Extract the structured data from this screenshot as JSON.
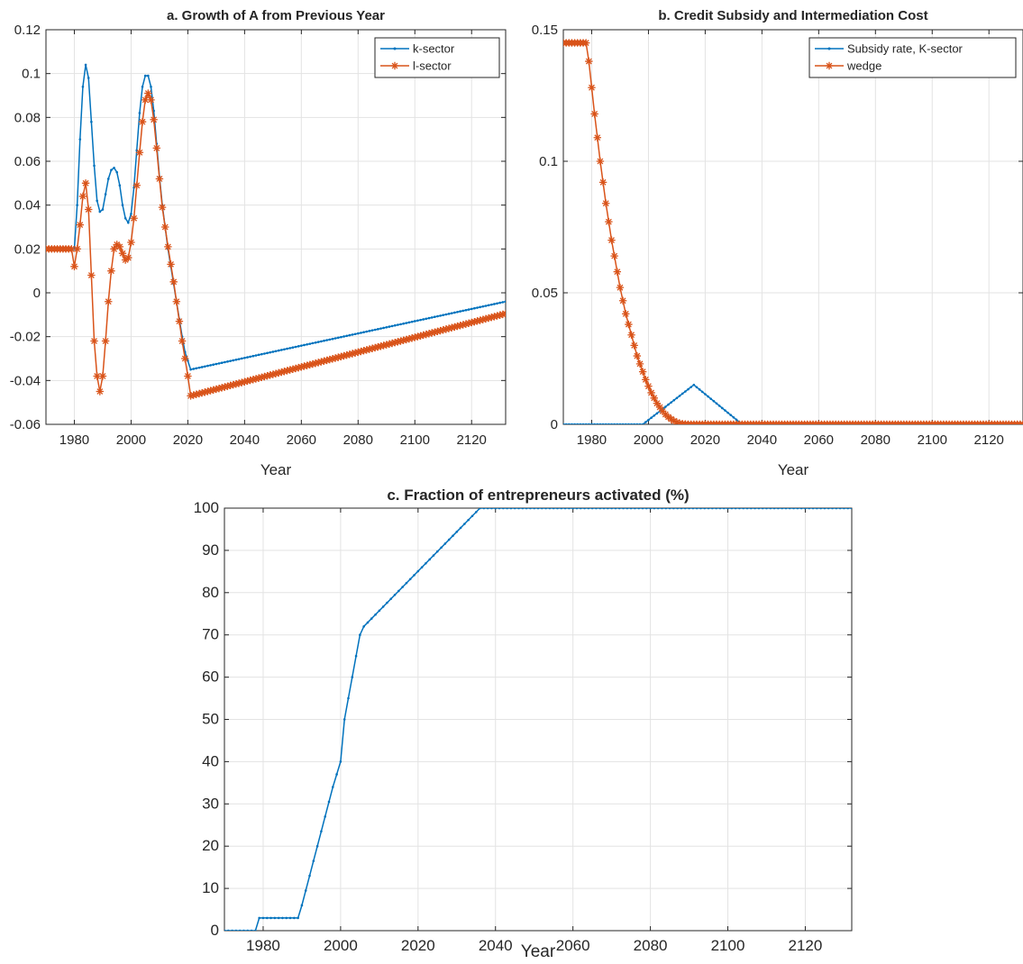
{
  "colors": {
    "series1": "#0072BD",
    "series2": "#D95319",
    "grid": "#E3E3E3",
    "axis": "#262626"
  },
  "chart_data": [
    {
      "id": "a",
      "type": "line",
      "title": "a. Growth of A from Previous Year",
      "xlabel": "Year",
      "ylabel": "",
      "xlim": [
        1970,
        2132
      ],
      "ylim": [
        -0.06,
        0.12
      ],
      "xticks": [
        1980,
        2000,
        2020,
        2040,
        2060,
        2080,
        2100,
        2120
      ],
      "xtick_labels": [
        "1980",
        "2000",
        "2020",
        "2040",
        "2060",
        "2080",
        "2100",
        "2120"
      ],
      "yticks": [
        -0.06,
        -0.04,
        -0.02,
        0,
        0.02,
        0.04,
        0.06,
        0.08,
        0.1,
        0.12
      ],
      "ytick_labels": [
        "-0.06",
        "-0.04",
        "-0.02",
        "0",
        "0.02",
        "0.04",
        "0.06",
        "0.08",
        "0.1",
        "0.12"
      ],
      "grid": true,
      "legend": "top-right",
      "series": [
        {
          "name": "k-sector",
          "marker": "dot",
          "color": "#0072BD",
          "points": [
            [
              1970,
              0.02
            ],
            [
              1979,
              0.02
            ],
            [
              1980,
              0.02
            ],
            [
              1981,
              0.04
            ],
            [
              1982,
              0.07
            ],
            [
              1983,
              0.094
            ],
            [
              1984,
              0.104
            ],
            [
              1985,
              0.098
            ],
            [
              1986,
              0.078
            ],
            [
              1987,
              0.058
            ],
            [
              1988,
              0.042
            ],
            [
              1989,
              0.037
            ],
            [
              1990,
              0.038
            ],
            [
              1991,
              0.045
            ],
            [
              1992,
              0.052
            ],
            [
              1993,
              0.056
            ],
            [
              1994,
              0.057
            ],
            [
              1995,
              0.055
            ],
            [
              1996,
              0.049
            ],
            [
              1997,
              0.04
            ],
            [
              1998,
              0.034
            ],
            [
              1999,
              0.032
            ],
            [
              2000,
              0.036
            ],
            [
              2001,
              0.048
            ],
            [
              2002,
              0.065
            ],
            [
              2003,
              0.082
            ],
            [
              2004,
              0.094
            ],
            [
              2005,
              0.099
            ],
            [
              2006,
              0.099
            ],
            [
              2007,
              0.094
            ],
            [
              2008,
              0.083
            ],
            [
              2009,
              0.068
            ],
            [
              2010,
              0.053
            ],
            [
              2011,
              0.04
            ],
            [
              2012,
              0.03
            ],
            [
              2013,
              0.02
            ],
            [
              2014,
              0.012
            ],
            [
              2015,
              0.004
            ],
            [
              2016,
              -0.004
            ],
            [
              2017,
              -0.012
            ],
            [
              2018,
              -0.02
            ],
            [
              2019,
              -0.027
            ],
            [
              2020,
              -0.031
            ],
            [
              2021,
              -0.035
            ],
            [
              2132,
              -0.004
            ]
          ]
        },
        {
          "name": "l-sector",
          "marker": "asterisk",
          "color": "#D95319",
          "points": [
            [
              1970,
              0.02
            ],
            [
              1971,
              0.02
            ],
            [
              1972,
              0.02
            ],
            [
              1973,
              0.02
            ],
            [
              1974,
              0.02
            ],
            [
              1975,
              0.02
            ],
            [
              1976,
              0.02
            ],
            [
              1977,
              0.02
            ],
            [
              1978,
              0.02
            ],
            [
              1979,
              0.02
            ],
            [
              1980,
              0.012
            ],
            [
              1981,
              0.02
            ],
            [
              1982,
              0.031
            ],
            [
              1983,
              0.044
            ],
            [
              1984,
              0.05
            ],
            [
              1985,
              0.038
            ],
            [
              1986,
              0.008
            ],
            [
              1987,
              -0.022
            ],
            [
              1988,
              -0.038
            ],
            [
              1989,
              -0.045
            ],
            [
              1990,
              -0.038
            ],
            [
              1991,
              -0.022
            ],
            [
              1992,
              -0.004
            ],
            [
              1993,
              0.01
            ],
            [
              1994,
              0.02
            ],
            [
              1995,
              0.022
            ],
            [
              1996,
              0.021
            ],
            [
              1997,
              0.018
            ],
            [
              1998,
              0.015
            ],
            [
              1999,
              0.016
            ],
            [
              2000,
              0.023
            ],
            [
              2001,
              0.034
            ],
            [
              2002,
              0.049
            ],
            [
              2003,
              0.064
            ],
            [
              2004,
              0.078
            ],
            [
              2005,
              0.088
            ],
            [
              2006,
              0.091
            ],
            [
              2007,
              0.088
            ],
            [
              2008,
              0.079
            ],
            [
              2009,
              0.066
            ],
            [
              2010,
              0.052
            ],
            [
              2011,
              0.039
            ],
            [
              2012,
              0.03
            ],
            [
              2013,
              0.021
            ],
            [
              2014,
              0.013
            ],
            [
              2015,
              0.005
            ],
            [
              2016,
              -0.004
            ],
            [
              2017,
              -0.013
            ],
            [
              2018,
              -0.022
            ],
            [
              2019,
              -0.03
            ],
            [
              2020,
              -0.038
            ],
            [
              2021,
              -0.047
            ],
            [
              2132,
              -0.0095
            ]
          ]
        }
      ]
    },
    {
      "id": "b",
      "type": "line",
      "title": "b. Credit Subsidy and Intermediation Cost",
      "xlabel": "Year",
      "ylabel": "",
      "xlim": [
        1970,
        2132
      ],
      "ylim": [
        0,
        0.15
      ],
      "xticks": [
        1980,
        2000,
        2020,
        2040,
        2060,
        2080,
        2100,
        2120
      ],
      "xtick_labels": [
        "1980",
        "2000",
        "2020",
        "2040",
        "2060",
        "2080",
        "2100",
        "2120"
      ],
      "yticks": [
        0,
        0.05,
        0.1,
        0.15
      ],
      "ytick_labels": [
        "0",
        "0.05",
        "0.1",
        "0.15"
      ],
      "grid": true,
      "legend": "top-right",
      "series": [
        {
          "name": "Subsidy rate, K-sector",
          "marker": "dot",
          "color": "#0072BD",
          "points": [
            [
              1970,
              0
            ],
            [
              1998,
              0
            ],
            [
              2016,
              0.015
            ],
            [
              2033,
              0
            ],
            [
              2132,
              0
            ]
          ]
        },
        {
          "name": "wedge",
          "marker": "asterisk",
          "color": "#D95319",
          "points": [
            [
              1970,
              0.145
            ],
            [
              1971,
              0.145
            ],
            [
              1972,
              0.145
            ],
            [
              1973,
              0.145
            ],
            [
              1974,
              0.145
            ],
            [
              1975,
              0.145
            ],
            [
              1976,
              0.145
            ],
            [
              1977,
              0.145
            ],
            [
              1978,
              0.145
            ],
            [
              1979,
              0.138
            ],
            [
              1980,
              0.128
            ],
            [
              1981,
              0.118
            ],
            [
              1982,
              0.109
            ],
            [
              1983,
              0.1
            ],
            [
              1984,
              0.092
            ],
            [
              1985,
              0.084
            ],
            [
              1986,
              0.077
            ],
            [
              1987,
              0.07
            ],
            [
              1988,
              0.064
            ],
            [
              1989,
              0.058
            ],
            [
              1990,
              0.052
            ],
            [
              1991,
              0.047
            ],
            [
              1992,
              0.042
            ],
            [
              1993,
              0.038
            ],
            [
              1994,
              0.034
            ],
            [
              1995,
              0.03
            ],
            [
              1996,
              0.026
            ],
            [
              1997,
              0.023
            ],
            [
              1998,
              0.02
            ],
            [
              1999,
              0.017
            ],
            [
              2000,
              0.0145
            ],
            [
              2001,
              0.012
            ],
            [
              2002,
              0.01
            ],
            [
              2003,
              0.008
            ],
            [
              2004,
              0.0065
            ],
            [
              2005,
              0.005
            ],
            [
              2006,
              0.0038
            ],
            [
              2007,
              0.0028
            ],
            [
              2008,
              0.002
            ],
            [
              2009,
              0.0013
            ],
            [
              2010,
              0.0008
            ],
            [
              2011,
              0.0004
            ],
            [
              2012,
              0.0002
            ],
            [
              2013,
              0.0001
            ],
            [
              2014,
              0
            ],
            [
              2132,
              0
            ]
          ]
        }
      ]
    },
    {
      "id": "c",
      "type": "line",
      "title": "c. Fraction of entrepreneurs activated (%)",
      "xlabel": "Year",
      "ylabel": "",
      "xlim": [
        1970,
        2132
      ],
      "ylim": [
        0,
        100
      ],
      "xticks": [
        1980,
        2000,
        2020,
        2040,
        2060,
        2080,
        2100,
        2120
      ],
      "xtick_labels": [
        "1980",
        "2000",
        "2020",
        "2040",
        "2060",
        "2080",
        "2100",
        "2120"
      ],
      "yticks": [
        0,
        10,
        20,
        30,
        40,
        50,
        60,
        70,
        80,
        90,
        100
      ],
      "ytick_labels": [
        "0",
        "10",
        "20",
        "30",
        "40",
        "50",
        "60",
        "70",
        "80",
        "90",
        "100"
      ],
      "grid": true,
      "legend": "none",
      "series": [
        {
          "name": "",
          "marker": "dot",
          "color": "#0072BD",
          "points": [
            [
              1970,
              0
            ],
            [
              1978,
              0
            ],
            [
              1979,
              3
            ],
            [
              1980,
              3
            ],
            [
              1989,
              3
            ],
            [
              1990,
              6
            ],
            [
              1991,
              9.5
            ],
            [
              1992,
              13
            ],
            [
              1993,
              16.5
            ],
            [
              1994,
              20
            ],
            [
              1995,
              23.5
            ],
            [
              1996,
              27
            ],
            [
              1997,
              30.5
            ],
            [
              1998,
              34
            ],
            [
              1999,
              37
            ],
            [
              2000,
              40
            ],
            [
              2001,
              50
            ],
            [
              2002,
              55
            ],
            [
              2003,
              60
            ],
            [
              2004,
              65
            ],
            [
              2005,
              70
            ],
            [
              2006,
              72
            ],
            [
              2036,
              100
            ],
            [
              2132,
              100
            ]
          ]
        }
      ]
    }
  ]
}
